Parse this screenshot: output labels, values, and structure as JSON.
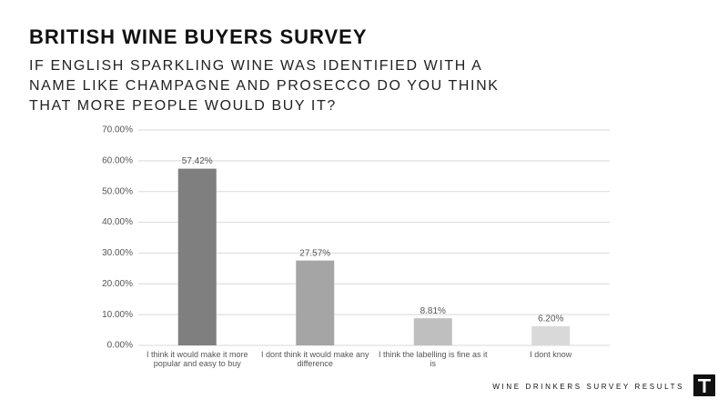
{
  "chart_data": {
    "type": "bar",
    "title": "BRITISH WINE BUYERS SURVEY",
    "subtitle": "IF ENGLISH SPARKLING WINE WAS IDENTIFIED WITH A NAME LIKE CHAMPAGNE AND PROSECCO DO YOU THINK THAT MORE PEOPLE WOULD BUY IT?",
    "categories": [
      "I think it would make it more popular and easy to buy",
      "I dont think it would make any difference",
      "I think the labelling is fine as it is",
      "I dont know"
    ],
    "values": [
      57.42,
      27.57,
      8.81,
      6.2
    ],
    "value_labels": [
      "57.42%",
      "27.57%",
      "8.81%",
      "6.20%"
    ],
    "colors": [
      "#7f7f7f",
      "#a5a5a5",
      "#bfbfbf",
      "#d9d9d9"
    ],
    "ylim": [
      0,
      70
    ],
    "yticks": [
      {
        "value": 0,
        "label": "0.00%"
      },
      {
        "value": 10,
        "label": "10.00%"
      },
      {
        "value": 20,
        "label": "20.00%"
      },
      {
        "value": 30,
        "label": "30.00%"
      },
      {
        "value": 40,
        "label": "40.00%"
      },
      {
        "value": 50,
        "label": "50.00%"
      },
      {
        "value": 60,
        "label": "60.00%"
      },
      {
        "value": 70,
        "label": "70.00%"
      }
    ],
    "grid": true,
    "footer": "WINE DRINKERS SURVEY RESULTS"
  }
}
